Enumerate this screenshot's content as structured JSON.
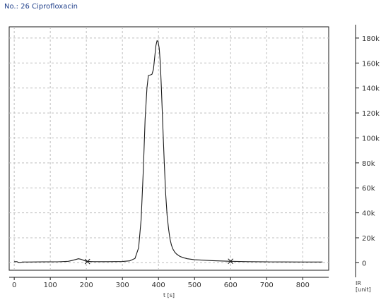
{
  "header": {
    "title": "No.:  26 Ciprofloxacin"
  },
  "chart_data": {
    "type": "line",
    "title": "No.:  26 Ciprofloxacin",
    "xlabel": "t [s]",
    "ylabel": "IR",
    "ylabel_unit": "[unit]",
    "xlim": [
      -14,
      872
    ],
    "ylim": [
      -6000,
      189000
    ],
    "x_ticks": [
      0,
      100,
      200,
      300,
      400,
      500,
      600,
      700,
      800
    ],
    "y_ticks": [
      0,
      20000,
      40000,
      60000,
      80000,
      100000,
      120000,
      140000,
      160000,
      180000
    ],
    "y_tick_labels": [
      "0",
      "20k",
      "40k",
      "60k",
      "80k",
      "100k",
      "120k",
      "140k",
      "160k",
      "180k"
    ],
    "grid": true,
    "y_axis_position": "right",
    "line_color": "#1a1a1a",
    "grid_color": "#bfbfbf",
    "series": [
      {
        "x": [
          0,
          8,
          12,
          18,
          22,
          40,
          80,
          120,
          150,
          160,
          170,
          178,
          185,
          192,
          200,
          220,
          260,
          300,
          320,
          335,
          345,
          352,
          358,
          363,
          368,
          372,
          378,
          382,
          386,
          390,
          393,
          396,
          399,
          402,
          405,
          408,
          412,
          416,
          420,
          424,
          428,
          432,
          436,
          440,
          445,
          450,
          460,
          470,
          480,
          500,
          550,
          600,
          650,
          700,
          750,
          800,
          855
        ],
        "y": [
          900,
          900,
          0,
          0,
          600,
          600,
          700,
          800,
          1200,
          1800,
          2600,
          3200,
          2800,
          2000,
          1200,
          900,
          900,
          1000,
          1500,
          3500,
          12000,
          35000,
          75000,
          115000,
          140000,
          150000,
          150500,
          151000,
          155000,
          166000,
          174000,
          178000,
          177000,
          172000,
          160000,
          140000,
          110000,
          80000,
          55000,
          38000,
          27000,
          19000,
          14000,
          11000,
          8500,
          7000,
          5000,
          4000,
          3200,
          2400,
          1700,
          1200,
          900,
          700,
          650,
          600,
          600
        ]
      }
    ],
    "markers": [
      {
        "x": 203,
        "y": 1000,
        "symbol": "x"
      },
      {
        "x": 600,
        "y": 1200,
        "symbol": "x"
      }
    ]
  }
}
